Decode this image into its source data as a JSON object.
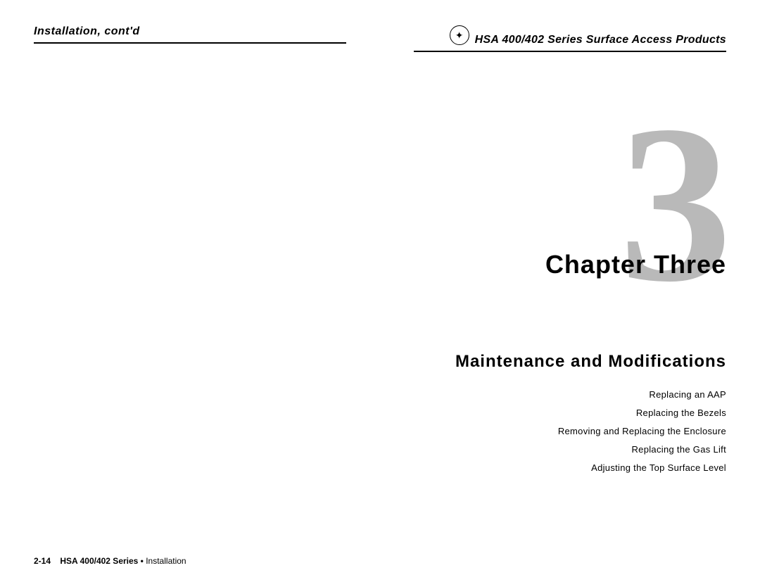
{
  "left_page": {
    "header": "Installation, cont'd",
    "footer": {
      "page_number": "2-14",
      "series": "HSA 400/402 Series •",
      "section": "Installation"
    }
  },
  "right_page": {
    "header": "HSA 400/402 Series Surface Access Products",
    "chapter_number": "3",
    "chapter_label": "Chapter Three",
    "section_title": "Maintenance and Modifications",
    "toc": [
      "Replacing an AAP",
      "Replacing the Bezels",
      "Removing and Replacing the Enclosure",
      "Replacing the Gas Lift",
      "Adjusting the Top Surface Level"
    ]
  },
  "colors": {
    "watermark_gray": "#b9b9b9",
    "text": "#000000",
    "background": "#ffffff"
  }
}
